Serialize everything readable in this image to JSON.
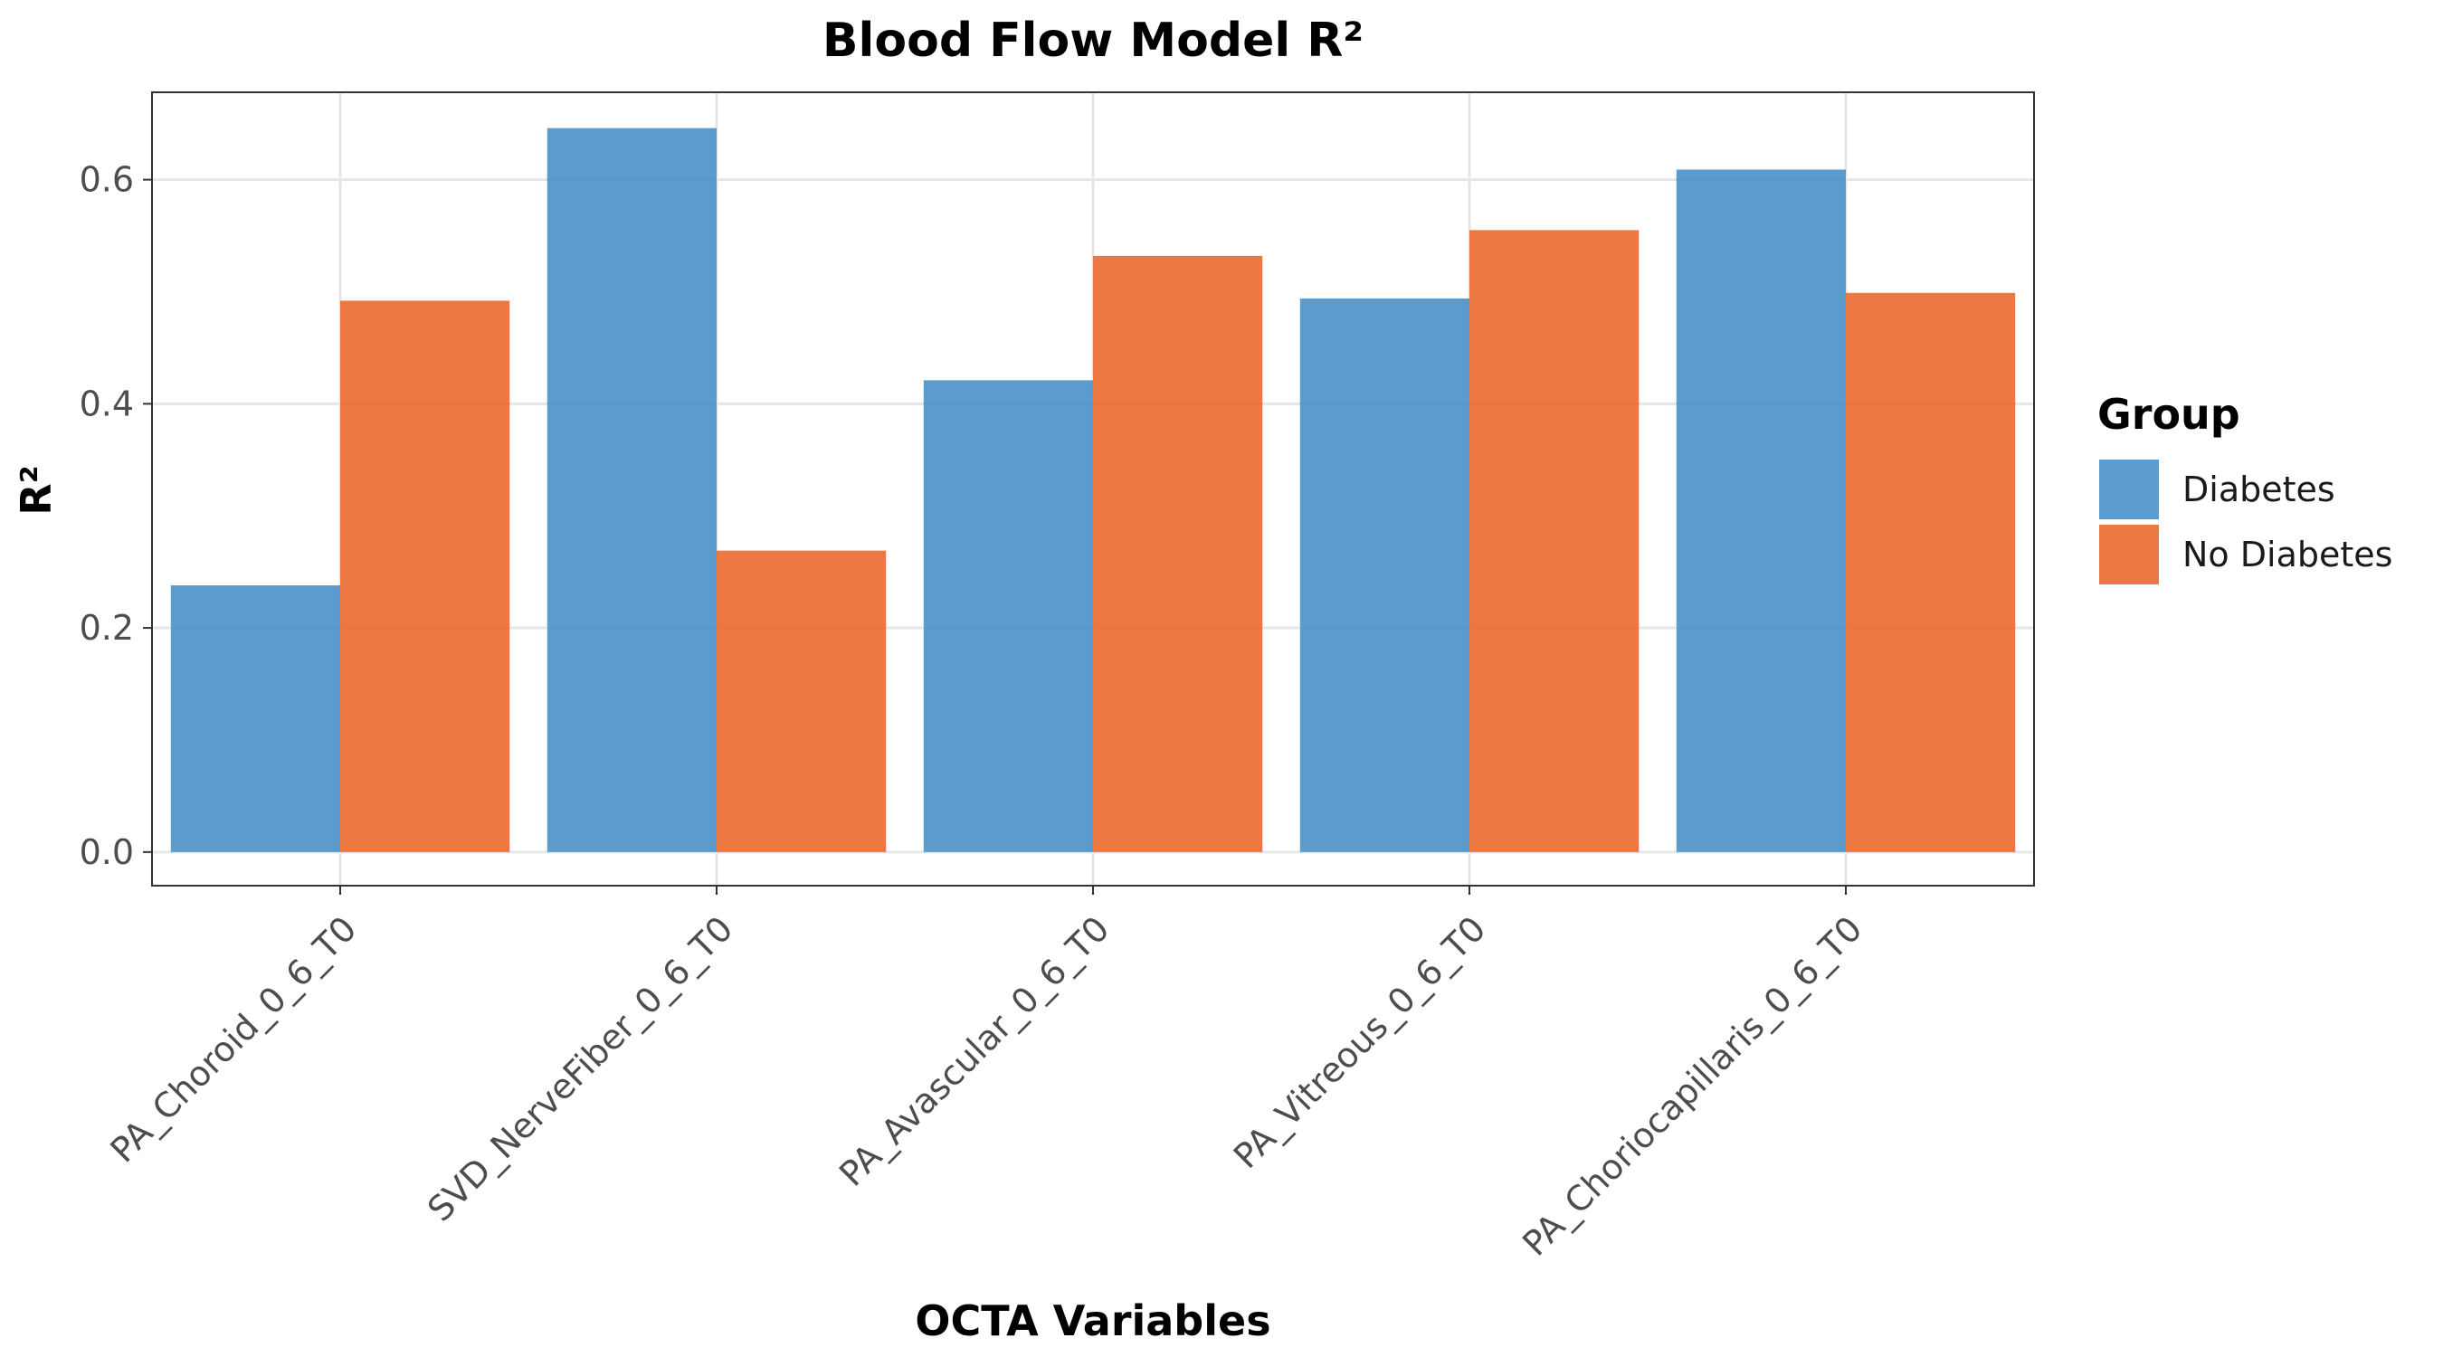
{
  "chart_data": {
    "type": "bar",
    "title": "Blood Flow Model R²",
    "xlabel": "OCTA Variables",
    "ylabel": "R²",
    "categories": [
      "PA_Choroid_0_6_T0",
      "SVD_NerveFiber_0_6_T0",
      "PA_Avascular_0_6_T0",
      "PA_Vitreous_0_6_T0",
      "PA_Choriocapillaris_0_6_T0"
    ],
    "series": [
      {
        "name": "Diabetes",
        "color": "#3f8ac4",
        "values": [
          0.238,
          0.646,
          0.421,
          0.494,
          0.609
        ]
      },
      {
        "name": "No Diabetes",
        "color": "#ea6121",
        "values": [
          0.492,
          0.269,
          0.532,
          0.555,
          0.499
        ]
      }
    ],
    "ylim": [
      -0.03,
      0.678
    ],
    "yticks": [
      0.0,
      0.2,
      0.4,
      0.6
    ],
    "ytick_labels": [
      "0.0",
      "0.2",
      "0.4",
      "0.6"
    ],
    "legend": {
      "title": "Group",
      "position": "right"
    },
    "grid": true
  }
}
